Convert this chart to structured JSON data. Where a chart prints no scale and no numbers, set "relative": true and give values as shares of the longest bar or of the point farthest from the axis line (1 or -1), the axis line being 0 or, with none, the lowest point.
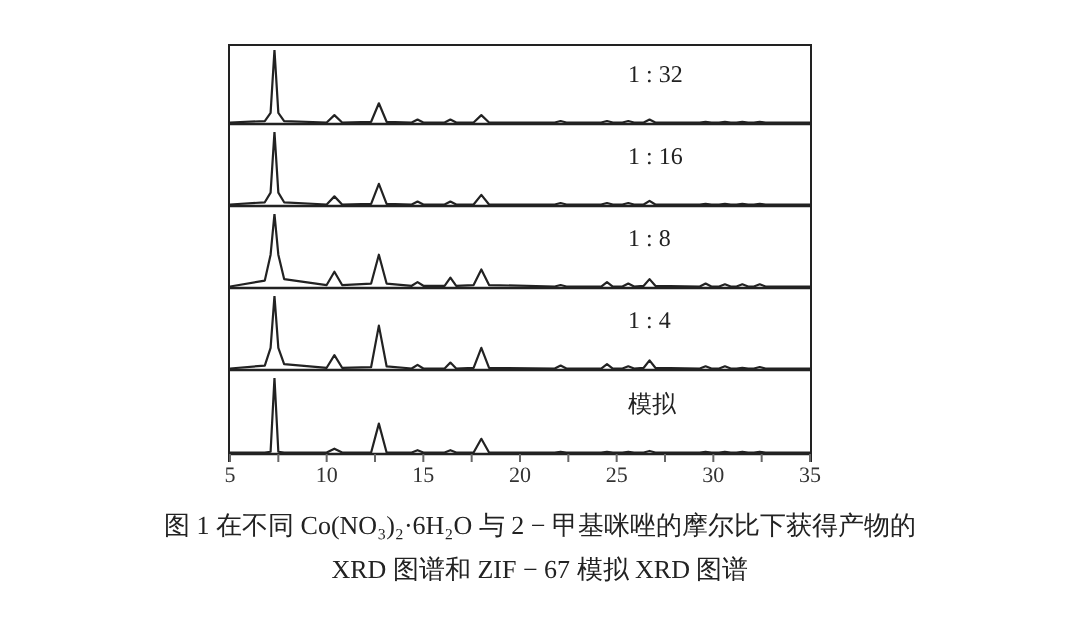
{
  "chart_data": [
    {
      "type": "line",
      "relative": true,
      "xlim": [
        5,
        35
      ],
      "tick_labels": false,
      "marker": "none",
      "line_style": "solid",
      "x": [
        5,
        6.8,
        7.1,
        7.3,
        7.5,
        7.8,
        10.0,
        10.4,
        10.8,
        12.3,
        12.7,
        13.1,
        14.4,
        14.7,
        15.0,
        16.1,
        16.4,
        16.7,
        17.6,
        18.0,
        18.4,
        21.8,
        22.1,
        22.4,
        24.2,
        24.5,
        24.8,
        25.3,
        25.6,
        25.9,
        26.4,
        26.7,
        27.0,
        29.3,
        29.6,
        29.9,
        30.3,
        30.6,
        30.9,
        31.2,
        31.5,
        31.8,
        32.1,
        32.4,
        32.7,
        35
      ],
      "series": [
        {
          "name": "1 : 32",
          "color": "#222222",
          "values": [
            0.02,
            0.04,
            0.15,
            1,
            0.15,
            0.04,
            0.02,
            0.12,
            0.02,
            0.03,
            0.28,
            0.03,
            0.02,
            0.06,
            0.02,
            0.02,
            0.06,
            0.02,
            0.02,
            0.12,
            0.02,
            0.02,
            0.04,
            0.02,
            0.02,
            0.04,
            0.02,
            0.02,
            0.04,
            0.02,
            0.02,
            0.06,
            0.02,
            0.02,
            0.03,
            0.02,
            0.02,
            0.03,
            0.02,
            0.02,
            0.03,
            0.02,
            0.02,
            0.03,
            0.02,
            0.02
          ]
        }
      ]
    },
    {
      "type": "line",
      "relative": true,
      "xlim": [
        5,
        35
      ],
      "tick_labels": false,
      "marker": "none",
      "line_style": "solid",
      "x": [
        5,
        6.8,
        7.1,
        7.3,
        7.5,
        7.8,
        10.0,
        10.4,
        10.8,
        12.3,
        12.7,
        13.1,
        14.4,
        14.7,
        15.0,
        16.1,
        16.4,
        16.7,
        17.6,
        18.0,
        18.4,
        21.8,
        22.1,
        22.4,
        24.2,
        24.5,
        24.8,
        25.3,
        25.6,
        25.9,
        26.4,
        26.7,
        27.0,
        29.3,
        29.6,
        29.9,
        30.3,
        30.6,
        30.9,
        31.2,
        31.5,
        31.8,
        32.1,
        32.4,
        32.7,
        35
      ],
      "series": [
        {
          "name": "1 : 16",
          "color": "#222222",
          "values": [
            0.02,
            0.05,
            0.18,
            1,
            0.18,
            0.05,
            0.02,
            0.13,
            0.02,
            0.03,
            0.3,
            0.03,
            0.02,
            0.06,
            0.02,
            0.02,
            0.06,
            0.02,
            0.02,
            0.15,
            0.02,
            0.02,
            0.04,
            0.02,
            0.02,
            0.04,
            0.02,
            0.02,
            0.04,
            0.02,
            0.02,
            0.07,
            0.02,
            0.02,
            0.03,
            0.02,
            0.02,
            0.03,
            0.02,
            0.02,
            0.03,
            0.02,
            0.02,
            0.03,
            0.02,
            0.02
          ]
        }
      ]
    },
    {
      "type": "line",
      "relative": true,
      "xlim": [
        5,
        35
      ],
      "tick_labels": false,
      "marker": "none",
      "line_style": "solid",
      "x": [
        5,
        6.8,
        7.1,
        7.3,
        7.5,
        7.8,
        10.0,
        10.4,
        10.8,
        12.3,
        12.7,
        13.1,
        14.4,
        14.7,
        15.0,
        16.1,
        16.4,
        16.7,
        17.6,
        18.0,
        18.4,
        21.8,
        22.1,
        22.4,
        24.2,
        24.5,
        24.8,
        25.3,
        25.6,
        25.9,
        26.4,
        26.7,
        27.0,
        29.3,
        29.6,
        29.9,
        30.3,
        30.6,
        30.9,
        31.2,
        31.5,
        31.8,
        32.1,
        32.4,
        32.7,
        35
      ],
      "series": [
        {
          "name": "1 : 8",
          "color": "#222222",
          "values": [
            0.02,
            0.1,
            0.45,
            1,
            0.45,
            0.12,
            0.04,
            0.22,
            0.04,
            0.06,
            0.45,
            0.06,
            0.03,
            0.08,
            0.03,
            0.03,
            0.14,
            0.03,
            0.04,
            0.25,
            0.04,
            0.02,
            0.04,
            0.02,
            0.02,
            0.08,
            0.02,
            0.02,
            0.06,
            0.02,
            0.03,
            0.12,
            0.03,
            0.02,
            0.06,
            0.02,
            0.02,
            0.05,
            0.02,
            0.02,
            0.05,
            0.02,
            0.02,
            0.05,
            0.02,
            0.02
          ]
        }
      ]
    },
    {
      "type": "line",
      "relative": true,
      "xlim": [
        5,
        35
      ],
      "tick_labels": false,
      "marker": "none",
      "line_style": "solid",
      "x": [
        5,
        6.8,
        7.1,
        7.3,
        7.5,
        7.8,
        10.0,
        10.4,
        10.8,
        12.3,
        12.7,
        13.1,
        14.4,
        14.7,
        15.0,
        16.1,
        16.4,
        16.7,
        17.6,
        18.0,
        18.4,
        21.8,
        22.1,
        22.4,
        24.2,
        24.5,
        24.8,
        25.3,
        25.6,
        25.9,
        26.4,
        26.7,
        27.0,
        29.3,
        29.6,
        29.9,
        30.3,
        30.6,
        30.9,
        31.2,
        31.5,
        31.8,
        32.1,
        32.4,
        32.7,
        35
      ],
      "series": [
        {
          "name": "1 : 4",
          "color": "#222222",
          "values": [
            0.02,
            0.06,
            0.3,
            1,
            0.3,
            0.08,
            0.03,
            0.2,
            0.03,
            0.04,
            0.6,
            0.05,
            0.02,
            0.07,
            0.02,
            0.02,
            0.1,
            0.02,
            0.03,
            0.3,
            0.03,
            0.02,
            0.06,
            0.02,
            0.02,
            0.08,
            0.02,
            0.02,
            0.05,
            0.02,
            0.03,
            0.13,
            0.03,
            0.02,
            0.05,
            0.02,
            0.02,
            0.05,
            0.02,
            0.02,
            0.03,
            0.02,
            0.02,
            0.04,
            0.02,
            0.02
          ]
        }
      ]
    },
    {
      "type": "line",
      "relative": true,
      "xlim": [
        5,
        35
      ],
      "xticks": [
        5,
        {
          "value": 7.5,
          "label": null
        },
        10,
        {
          "value": 12.5,
          "label": null
        },
        15,
        {
          "value": 17.5,
          "label": null
        },
        20,
        {
          "value": 22.5,
          "label": null
        },
        25,
        {
          "value": 27.5,
          "label": null
        },
        30,
        {
          "value": 32.5,
          "label": null
        },
        35
      ],
      "tick_labels": "x",
      "marker": "none",
      "line_style": "solid",
      "x": [
        5,
        6.8,
        7.1,
        7.3,
        7.5,
        7.8,
        10.0,
        10.4,
        10.8,
        12.3,
        12.7,
        13.1,
        14.4,
        14.7,
        15.0,
        16.1,
        16.4,
        16.7,
        17.6,
        18.0,
        18.4,
        21.8,
        22.1,
        22.4,
        24.2,
        24.5,
        24.8,
        25.3,
        25.6,
        25.9,
        26.4,
        26.7,
        27.0,
        29.3,
        29.6,
        29.9,
        30.3,
        30.6,
        30.9,
        31.2,
        31.5,
        31.8,
        32.1,
        32.4,
        32.7,
        35
      ],
      "series": [
        {
          "name": "模拟",
          "color": "#222222",
          "values": [
            0.02,
            0.02,
            0.03,
            1,
            0.03,
            0.02,
            0.02,
            0.07,
            0.02,
            0.02,
            0.4,
            0.02,
            0.02,
            0.05,
            0.02,
            0.02,
            0.05,
            0.02,
            0.02,
            0.2,
            0.02,
            0.02,
            0.03,
            0.02,
            0.02,
            0.03,
            0.02,
            0.02,
            0.03,
            0.02,
            0.02,
            0.04,
            0.02,
            0.02,
            0.03,
            0.02,
            0.02,
            0.03,
            0.02,
            0.02,
            0.03,
            0.02,
            0.02,
            0.03,
            0.02,
            0.02
          ]
        }
      ],
      "annotations": [
        "图 1    在不同 Co(NO₃)₂·6H₂O 与 2 − 甲基咪唑的摩尔比下获得产物的",
        "XRD 图谱和 ZIF − 67 模拟 XRD 图谱"
      ]
    }
  ]
}
